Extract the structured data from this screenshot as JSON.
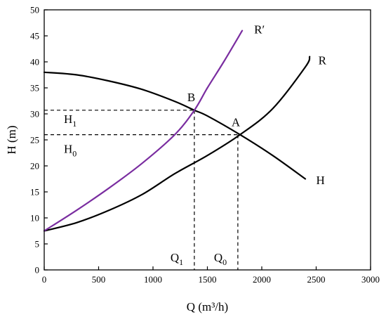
{
  "chart_data": {
    "type": "line",
    "title": "",
    "xlabel": "Q (m³/h)",
    "ylabel": "H (m)",
    "xlim": [
      0,
      3000
    ],
    "ylim": [
      0,
      50
    ],
    "xticks": [
      0,
      500,
      1000,
      1500,
      2000,
      2500,
      3000
    ],
    "yticks": [
      0,
      5,
      10,
      15,
      20,
      25,
      30,
      35,
      40,
      45,
      50
    ],
    "grid": false,
    "legend": "none",
    "series": [
      {
        "name": "H",
        "color": "#000000",
        "x": [
          0,
          300,
          600,
          900,
          1200,
          1380,
          1500,
          1800,
          2100,
          2400
        ],
        "y": [
          38,
          37.5,
          36.3,
          34.7,
          32.4,
          30.7,
          29.6,
          26.0,
          22.0,
          17.5
        ]
      },
      {
        "name": "R",
        "color": "#000000",
        "x": [
          0,
          300,
          600,
          900,
          1200,
          1500,
          1800,
          2100,
          2400,
          2440
        ],
        "y": [
          7.5,
          9.1,
          11.5,
          14.5,
          18.5,
          22.0,
          26.0,
          31.0,
          39.0,
          41.0
        ]
      },
      {
        "name": "R′",
        "color": "#7a2da0",
        "x": [
          0,
          300,
          600,
          900,
          1200,
          1380,
          1500,
          1650,
          1820
        ],
        "y": [
          7.5,
          11.5,
          15.8,
          20.5,
          26.0,
          30.7,
          35.0,
          40.0,
          46.0
        ]
      }
    ],
    "points": [
      {
        "label": "A",
        "x": 1780,
        "y": 26.0
      },
      {
        "label": "B",
        "x": 1380,
        "y": 30.7
      }
    ],
    "reference_lines": {
      "H1": {
        "label": "H1",
        "value": 30.7
      },
      "H0": {
        "label": "H0",
        "value": 26.0
      },
      "Q1": {
        "label": "Q1",
        "value": 1380
      },
      "Q0": {
        "label": "Q0",
        "value": 1780
      }
    },
    "curve_label_anchors": {
      "H": {
        "x": 2500,
        "y": 16.5
      },
      "R": {
        "x": 2520,
        "y": 39.5
      },
      "R′": {
        "x": 1930,
        "y": 45.5
      }
    }
  }
}
